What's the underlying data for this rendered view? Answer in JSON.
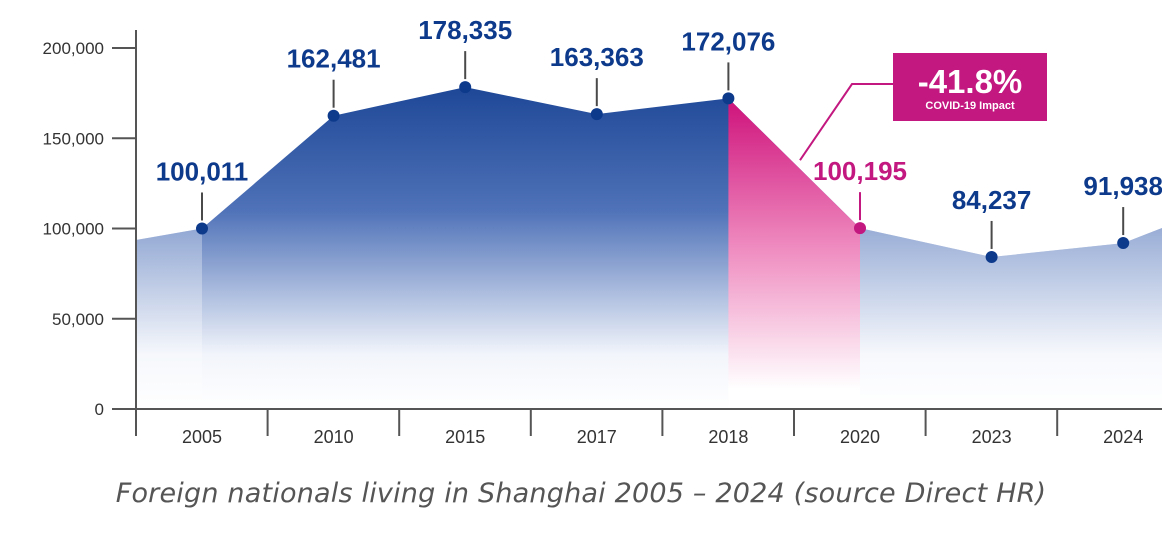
{
  "caption": "Foreign nationals living in Shanghai 2005 – 2024 (source Direct HR)",
  "annotation": {
    "value": "-41.8%",
    "text": "COVID-19 Impact",
    "color": "#c2187f"
  },
  "colors": {
    "navy": "#0e3a8c",
    "axis": "#555555",
    "magenta": "#c2187f"
  },
  "chart_data": {
    "type": "area",
    "title": "",
    "xlabel": "",
    "ylabel": "",
    "categories": [
      "2005",
      "2010",
      "2015",
      "2017",
      "2018",
      "2020",
      "2023",
      "2024"
    ],
    "values": [
      100011,
      162481,
      178335,
      163363,
      172076,
      100195,
      84237,
      91938
    ],
    "data_labels": [
      "100,011",
      "162,481",
      "178,335",
      "163,363",
      "172,076",
      "100,195",
      "84,237",
      "91,938"
    ],
    "yticks": [
      0,
      50000,
      100000,
      150000,
      200000
    ],
    "ytick_labels": [
      "0",
      "50,000",
      "100,000",
      "150,000",
      "200,000"
    ],
    "ylim": [
      0,
      200000
    ],
    "grid": false,
    "highlight": {
      "from": "2018",
      "to": "2020"
    }
  }
}
